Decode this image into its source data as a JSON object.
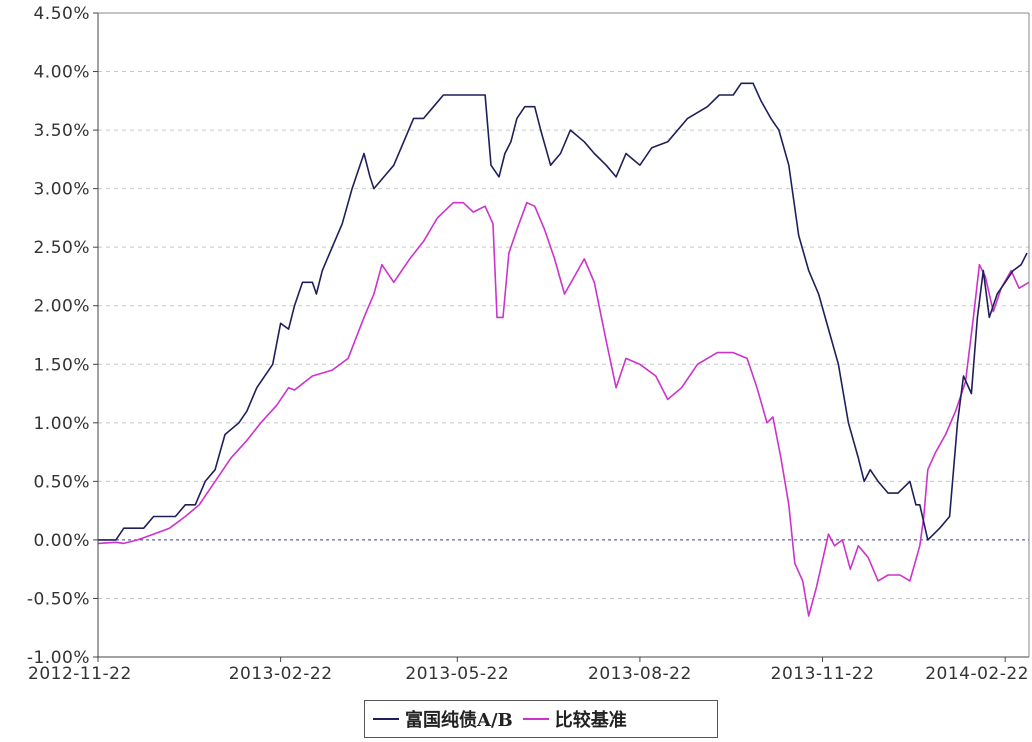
{
  "chart_data": {
    "type": "line",
    "title": "",
    "xlabel": "",
    "ylabel": "",
    "ylim": [
      -1.0,
      4.5
    ],
    "y_ticks": [
      "-1.00%",
      "-0.50%",
      "0.00%",
      "0.50%",
      "1.00%",
      "1.50%",
      "2.00%",
      "2.50%",
      "3.00%",
      "3.50%",
      "4.00%",
      "4.50%"
    ],
    "y_tick_values": [
      -1.0,
      -0.5,
      0.0,
      0.5,
      1.0,
      1.5,
      2.0,
      2.5,
      3.0,
      3.5,
      4.0,
      4.5
    ],
    "x_ticks": [
      "2012-11-22",
      "2013-02-22",
      "2013-05-22",
      "2013-08-22",
      "2013-11-22",
      "2014-02-22"
    ],
    "x_range": [
      "2012-11-22",
      "2014-03-06"
    ],
    "grid": true,
    "legend": "bottom",
    "series": [
      {
        "name": "富国纯债A/B",
        "color": "#1f1f5c",
        "points": [
          [
            "2012-11-22",
            0.0
          ],
          [
            "2012-12-01",
            0.0
          ],
          [
            "2012-12-05",
            0.1
          ],
          [
            "2012-12-15",
            0.1
          ],
          [
            "2012-12-20",
            0.2
          ],
          [
            "2012-12-31",
            0.2
          ],
          [
            "2013-01-05",
            0.3
          ],
          [
            "2013-01-10",
            0.3
          ],
          [
            "2013-01-15",
            0.5
          ],
          [
            "2013-01-20",
            0.6
          ],
          [
            "2013-01-25",
            0.9
          ],
          [
            "2013-02-01",
            1.0
          ],
          [
            "2013-02-05",
            1.1
          ],
          [
            "2013-02-10",
            1.3
          ],
          [
            "2013-02-18",
            1.5
          ],
          [
            "2013-02-22",
            1.85
          ],
          [
            "2013-02-26",
            1.8
          ],
          [
            "2013-03-01",
            2.0
          ],
          [
            "2013-03-05",
            2.2
          ],
          [
            "2013-03-10",
            2.2
          ],
          [
            "2013-03-12",
            2.1
          ],
          [
            "2013-03-15",
            2.3
          ],
          [
            "2013-03-20",
            2.5
          ],
          [
            "2013-03-25",
            2.7
          ],
          [
            "2013-03-30",
            3.0
          ],
          [
            "2013-04-05",
            3.3
          ],
          [
            "2013-04-08",
            3.1
          ],
          [
            "2013-04-10",
            3.0
          ],
          [
            "2013-04-15",
            3.1
          ],
          [
            "2013-04-20",
            3.2
          ],
          [
            "2013-04-25",
            3.4
          ],
          [
            "2013-04-30",
            3.6
          ],
          [
            "2013-05-05",
            3.6
          ],
          [
            "2013-05-10",
            3.7
          ],
          [
            "2013-05-15",
            3.8
          ],
          [
            "2013-05-31",
            3.8
          ],
          [
            "2013-06-05",
            3.8
          ],
          [
            "2013-06-08",
            3.2
          ],
          [
            "2013-06-12",
            3.1
          ],
          [
            "2013-06-15",
            3.3
          ],
          [
            "2013-06-18",
            3.4
          ],
          [
            "2013-06-21",
            3.6
          ],
          [
            "2013-06-25",
            3.7
          ],
          [
            "2013-06-30",
            3.7
          ],
          [
            "2013-07-03",
            3.5
          ],
          [
            "2013-07-08",
            3.2
          ],
          [
            "2013-07-13",
            3.3
          ],
          [
            "2013-07-18",
            3.5
          ],
          [
            "2013-07-25",
            3.4
          ],
          [
            "2013-07-30",
            3.3
          ],
          [
            "2013-08-05",
            3.2
          ],
          [
            "2013-08-10",
            3.1
          ],
          [
            "2013-08-15",
            3.3
          ],
          [
            "2013-08-22",
            3.2
          ],
          [
            "2013-08-28",
            3.35
          ],
          [
            "2013-09-05",
            3.4
          ],
          [
            "2013-09-15",
            3.6
          ],
          [
            "2013-09-25",
            3.7
          ],
          [
            "2013-10-01",
            3.8
          ],
          [
            "2013-10-08",
            3.8
          ],
          [
            "2013-10-12",
            3.9
          ],
          [
            "2013-10-18",
            3.9
          ],
          [
            "2013-10-22",
            3.75
          ],
          [
            "2013-10-27",
            3.6
          ],
          [
            "2013-10-31",
            3.5
          ],
          [
            "2013-11-05",
            3.2
          ],
          [
            "2013-11-10",
            2.6
          ],
          [
            "2013-11-15",
            2.3
          ],
          [
            "2013-11-20",
            2.1
          ],
          [
            "2013-11-25",
            1.8
          ],
          [
            "2013-11-30",
            1.5
          ],
          [
            "2013-12-05",
            1.0
          ],
          [
            "2013-12-10",
            0.7
          ],
          [
            "2013-12-13",
            0.5
          ],
          [
            "2013-12-16",
            0.6
          ],
          [
            "2013-12-20",
            0.5
          ],
          [
            "2013-12-25",
            0.4
          ],
          [
            "2013-12-30",
            0.4
          ],
          [
            "2014-01-05",
            0.5
          ],
          [
            "2014-01-08",
            0.3
          ],
          [
            "2014-01-10",
            0.3
          ],
          [
            "2014-01-14",
            0.0
          ],
          [
            "2014-01-20",
            0.1
          ],
          [
            "2014-01-25",
            0.2
          ],
          [
            "2014-01-29",
            1.0
          ],
          [
            "2014-02-01",
            1.4
          ],
          [
            "2014-02-05",
            1.25
          ],
          [
            "2014-02-08",
            1.9
          ],
          [
            "2014-02-11",
            2.3
          ],
          [
            "2014-02-14",
            1.9
          ],
          [
            "2014-02-18",
            2.1
          ],
          [
            "2014-02-22",
            2.2
          ],
          [
            "2014-02-26",
            2.3
          ],
          [
            "2014-03-02",
            2.35
          ],
          [
            "2014-03-05",
            2.45
          ]
        ]
      },
      {
        "name": "比较基准",
        "color": "#cc33cc",
        "points": [
          [
            "2012-11-22",
            -0.03
          ],
          [
            "2012-12-01",
            -0.02
          ],
          [
            "2012-12-05",
            -0.03
          ],
          [
            "2012-12-12",
            0.0
          ],
          [
            "2012-12-20",
            0.05
          ],
          [
            "2012-12-28",
            0.1
          ],
          [
            "2013-01-05",
            0.2
          ],
          [
            "2013-01-12",
            0.3
          ],
          [
            "2013-01-20",
            0.5
          ],
          [
            "2013-01-28",
            0.7
          ],
          [
            "2013-02-05",
            0.85
          ],
          [
            "2013-02-12",
            1.0
          ],
          [
            "2013-02-20",
            1.15
          ],
          [
            "2013-02-26",
            1.3
          ],
          [
            "2013-03-01",
            1.28
          ],
          [
            "2013-03-10",
            1.4
          ],
          [
            "2013-03-20",
            1.45
          ],
          [
            "2013-03-28",
            1.55
          ],
          [
            "2013-04-05",
            1.9
          ],
          [
            "2013-04-10",
            2.1
          ],
          [
            "2013-04-14",
            2.35
          ],
          [
            "2013-04-20",
            2.2
          ],
          [
            "2013-04-28",
            2.4
          ],
          [
            "2013-05-05",
            2.55
          ],
          [
            "2013-05-12",
            2.75
          ],
          [
            "2013-05-20",
            2.88
          ],
          [
            "2013-05-25",
            2.88
          ],
          [
            "2013-05-30",
            2.8
          ],
          [
            "2013-06-05",
            2.85
          ],
          [
            "2013-06-09",
            2.7
          ],
          [
            "2013-06-11",
            1.9
          ],
          [
            "2013-06-14",
            1.9
          ],
          [
            "2013-06-17",
            2.45
          ],
          [
            "2013-06-21",
            2.65
          ],
          [
            "2013-06-26",
            2.88
          ],
          [
            "2013-06-30",
            2.85
          ],
          [
            "2013-07-05",
            2.65
          ],
          [
            "2013-07-10",
            2.4
          ],
          [
            "2013-07-15",
            2.1
          ],
          [
            "2013-07-20",
            2.25
          ],
          [
            "2013-07-25",
            2.4
          ],
          [
            "2013-07-30",
            2.2
          ],
          [
            "2013-08-05",
            1.7
          ],
          [
            "2013-08-10",
            1.3
          ],
          [
            "2013-08-15",
            1.55
          ],
          [
            "2013-08-22",
            1.5
          ],
          [
            "2013-08-30",
            1.4
          ],
          [
            "2013-09-05",
            1.2
          ],
          [
            "2013-09-12",
            1.3
          ],
          [
            "2013-09-20",
            1.5
          ],
          [
            "2013-09-30",
            1.6
          ],
          [
            "2013-10-08",
            1.6
          ],
          [
            "2013-10-15",
            1.55
          ],
          [
            "2013-10-20",
            1.3
          ],
          [
            "2013-10-25",
            1.0
          ],
          [
            "2013-10-28",
            1.05
          ],
          [
            "2013-11-01",
            0.7
          ],
          [
            "2013-11-05",
            0.3
          ],
          [
            "2013-11-08",
            -0.2
          ],
          [
            "2013-11-12",
            -0.35
          ],
          [
            "2013-11-15",
            -0.65
          ],
          [
            "2013-11-19",
            -0.4
          ],
          [
            "2013-11-23",
            -0.1
          ],
          [
            "2013-11-25",
            0.05
          ],
          [
            "2013-11-28",
            -0.05
          ],
          [
            "2013-12-02",
            0.0
          ],
          [
            "2013-12-06",
            -0.25
          ],
          [
            "2013-12-10",
            -0.05
          ],
          [
            "2013-12-15",
            -0.15
          ],
          [
            "2013-12-20",
            -0.35
          ],
          [
            "2013-12-25",
            -0.3
          ],
          [
            "2013-12-31",
            -0.3
          ],
          [
            "2014-01-05",
            -0.35
          ],
          [
            "2014-01-10",
            -0.05
          ],
          [
            "2014-01-12",
            0.2
          ],
          [
            "2014-01-14",
            0.6
          ],
          [
            "2014-01-18",
            0.75
          ],
          [
            "2014-01-23",
            0.9
          ],
          [
            "2014-01-28",
            1.1
          ],
          [
            "2014-02-02",
            1.35
          ],
          [
            "2014-02-06",
            1.9
          ],
          [
            "2014-02-09",
            2.35
          ],
          [
            "2014-02-12",
            2.25
          ],
          [
            "2014-02-16",
            1.95
          ],
          [
            "2014-02-20",
            2.15
          ],
          [
            "2014-02-25",
            2.3
          ],
          [
            "2014-03-01",
            2.15
          ],
          [
            "2014-03-06",
            2.2
          ]
        ]
      }
    ]
  }
}
